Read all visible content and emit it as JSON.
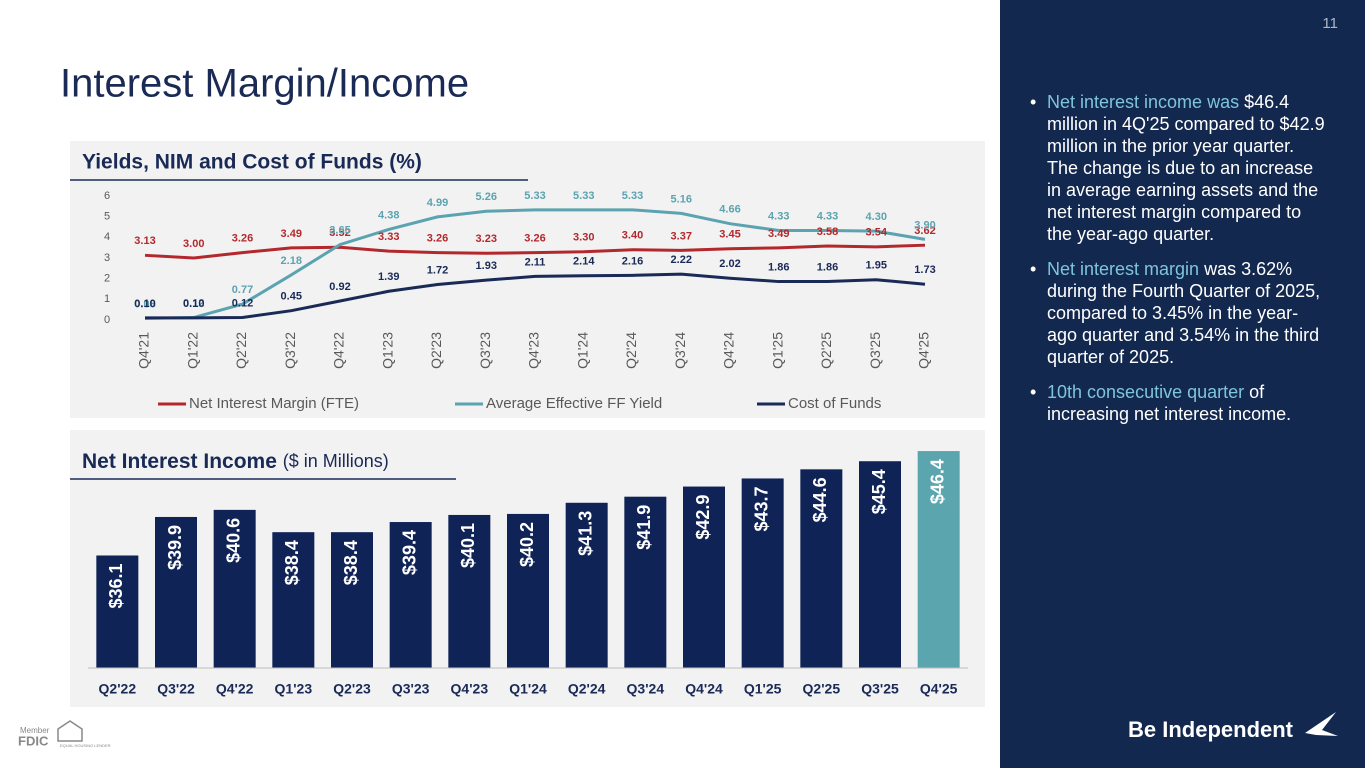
{
  "page_number": "11",
  "title": "Interest Margin/Income",
  "bullets": [
    {
      "highlight": "Net interest income was",
      "text": "$46.4 million in 4Q'25 compared to $42.9 million in the prior year quarter. The change is due to an increase in average earning assets and the net interest margin compared to the year-ago quarter."
    },
    {
      "highlight": "Net interest margin",
      "text": "was 3.62% during the Fourth Quarter of 2025, compared to 3.45% in the year-ago quarter and 3.54% in the third quarter of 2025."
    },
    {
      "highlight": "10th consecutive quarter",
      "text": "of increasing net interest income."
    }
  ],
  "logo": "Be Independent",
  "footer": {
    "member": "Member",
    "fdic": "FDIC",
    "lender": "EQUAL HOUSING LENDER"
  },
  "chart_data": [
    {
      "type": "line",
      "title": "Yields, NIM and Cost of Funds (%)",
      "categories": [
        "Q4'21",
        "Q1'22",
        "Q2'22",
        "Q3'22",
        "Q4'22",
        "Q1'23",
        "Q2'23",
        "Q3'23",
        "Q4'23",
        "Q1'24",
        "Q2'24",
        "Q3'24",
        "Q4'24",
        "Q1'25",
        "Q2'25",
        "Q3'25",
        "Q4'25"
      ],
      "series": [
        {
          "name": "Net Interest Margin (FTE)",
          "color": "#b3282d",
          "values": [
            3.13,
            3.0,
            3.26,
            3.49,
            3.52,
            3.33,
            3.26,
            3.23,
            3.26,
            3.3,
            3.4,
            3.37,
            3.45,
            3.49,
            3.58,
            3.54,
            3.62
          ],
          "value_labels": [
            "3.13",
            "3.00",
            "3.26",
            "3.49",
            "3.52",
            "3.33",
            "3.26",
            "3.23",
            "3.26",
            "3.30",
            "3.40",
            "3.37",
            "3.45",
            "3.49",
            "3.58",
            "3.54",
            "3.62"
          ]
        },
        {
          "name": "Average Effective FF Yield",
          "color": "#5ba3b0",
          "values": [
            0.08,
            0.12,
            0.77,
            2.18,
            3.65,
            4.38,
            4.99,
            5.26,
            5.33,
            5.33,
            5.33,
            5.16,
            4.66,
            4.33,
            4.33,
            4.3,
            3.9
          ],
          "value_labels": [
            "0.08",
            "0.12",
            "0.77",
            "2.18",
            "3.65",
            "4.38",
            "4.99",
            "5.26",
            "5.33",
            "5.33",
            "5.33",
            "5.16",
            "4.66",
            "4.33",
            "4.33",
            "4.30",
            "3.90"
          ]
        },
        {
          "name": "Cost of Funds",
          "color": "#1a2a56",
          "values": [
            0.1,
            0.1,
            0.12,
            0.45,
            0.92,
            1.39,
            1.72,
            1.93,
            2.11,
            2.14,
            2.16,
            2.22,
            2.02,
            1.86,
            1.86,
            1.95,
            1.73
          ],
          "value_labels": [
            "0.10",
            "0.10",
            "0.12",
            "0.45",
            "0.92",
            "1.39",
            "1.72",
            "1.93",
            "2.11",
            "2.14",
            "2.16",
            "2.22",
            "2.02",
            "1.86",
            "1.86",
            "1.95",
            "1.73"
          ]
        }
      ],
      "ylim": [
        0,
        6
      ],
      "yticks": [
        0,
        1,
        2,
        3,
        4,
        5,
        6
      ],
      "grid": false,
      "legend": "bottom"
    },
    {
      "type": "bar",
      "title": "Net Interest Income",
      "subtitle": "($ in Millions)",
      "categories": [
        "Q2'22",
        "Q3'22",
        "Q4'22",
        "Q1'23",
        "Q2'23",
        "Q3'23",
        "Q4'23",
        "Q1'24",
        "Q2'24",
        "Q3'24",
        "Q4'24",
        "Q1'25",
        "Q2'25",
        "Q3'25",
        "Q4'25"
      ],
      "values": [
        36.1,
        39.9,
        40.6,
        38.4,
        38.4,
        39.4,
        40.1,
        40.2,
        41.3,
        41.9,
        42.9,
        43.7,
        44.6,
        45.4,
        46.4
      ],
      "value_labels": [
        "$36.1",
        "$39.9",
        "$40.6",
        "$38.4",
        "$38.4",
        "$39.4",
        "$40.1",
        "$40.2",
        "$41.3",
        "$41.9",
        "$42.9",
        "$43.7",
        "$44.6",
        "$45.4",
        "$46.4"
      ],
      "colors": [
        "#0f2357",
        "#0f2357",
        "#0f2357",
        "#0f2357",
        "#0f2357",
        "#0f2357",
        "#0f2357",
        "#0f2357",
        "#0f2357",
        "#0f2357",
        "#0f2357",
        "#0f2357",
        "#0f2357",
        "#0f2357",
        "#5aa5ae"
      ],
      "ylim": [
        25,
        47
      ]
    }
  ]
}
